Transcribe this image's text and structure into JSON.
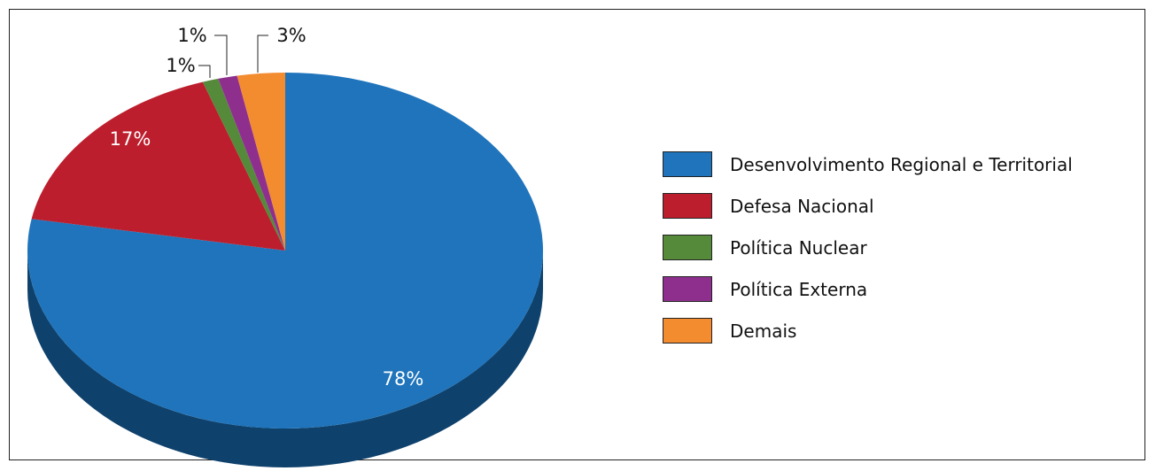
{
  "chart_data": {
    "type": "pie",
    "title": "",
    "slices": [
      {
        "label": "Desenvolvimento Regional e Territorial",
        "value": 78,
        "display": "78%",
        "color": "#1f74bb",
        "side_color": "#0e416c"
      },
      {
        "label": "Defesa Nacional",
        "value": 17,
        "display": "17%",
        "color": "#bd1e2d",
        "side_color": "#6e1019"
      },
      {
        "label": "Política Nuclear",
        "value": 1,
        "display": "1%",
        "color": "#548a3a",
        "side_color": "#2f4f20"
      },
      {
        "label": "Política Externa",
        "value": 1.2,
        "display": "1%",
        "color": "#8e2f8e",
        "side_color": "#521a52"
      },
      {
        "label": "Demais",
        "value": 3,
        "display": "3%",
        "color": "#f38b2f",
        "side_color": "#a85c1a"
      }
    ],
    "legend_position": "right",
    "style": "3d"
  }
}
